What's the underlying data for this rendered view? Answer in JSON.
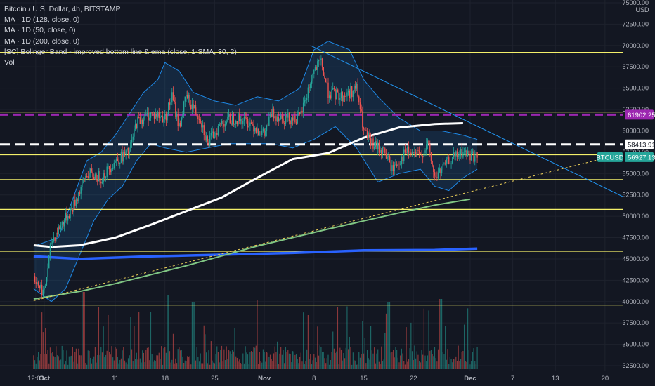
{
  "legend": {
    "title": "Bitcoin / U.S. Dollar, 4h, BITSTAMP",
    "ma128": "MA · 1D (128, close, 0)",
    "ma50": "MA · 1D (50, close, 0)",
    "ma200": "MA · 1D (200, close, 0)",
    "bb": "[SC] Bolinger Band - improved bottom line & ema (close, 1-SMA, 30, 2)",
    "vol": "Vol"
  },
  "colors": {
    "background": "#131722",
    "up": "#26a69a",
    "down": "#ef5350",
    "horizontal": "#f4f06a",
    "purple": "#9c27b0",
    "ma128": "#ffffff",
    "ma50": "#81c784",
    "ma200": "#2962ff",
    "band": "#1e88e5",
    "trend": "#2196f3",
    "dashed_trend": "#f0d25a"
  },
  "chart_data": {
    "type": "candlestick",
    "symbol": "BTCUSD",
    "currency_label": "USD",
    "ylim": [
      32500,
      75000
    ],
    "y_ticks": [
      32500,
      35000,
      37500,
      40000,
      42500,
      45000,
      47500,
      50000,
      52500,
      55000,
      57500,
      60000,
      62500,
      65000,
      67500,
      70000,
      72500,
      75000
    ],
    "y_tick_labels": [
      "32500.00",
      "35000.00",
      "37500.00",
      "40000.00",
      "42500.00",
      "45000.00",
      "47500.00",
      "50000.00",
      "52500.00",
      "55000.00",
      "57500.00",
      "60000.00",
      "62500.00",
      "65000.00",
      "67500.00",
      "70000.00",
      "72500.00",
      "75000.00"
    ],
    "x_labels": [
      "12:00",
      "Oct",
      "11",
      "18",
      "25",
      "Nov",
      "8",
      "15",
      "22",
      "Dec",
      "7",
      "13",
      "20"
    ],
    "horizontal_levels": [
      69200,
      62200,
      57200,
      54300,
      50800,
      45900,
      39600
    ],
    "purple_level": 61902.25,
    "purple_label": "61902.25",
    "white_dashed_level": 58413.91,
    "white_dashed_label": "58413.91",
    "last_price": 56927.13,
    "last_price_label": "56927.13",
    "symbol_label": "BTCUSD",
    "series_close_points": [
      {
        "d": -1.5,
        "v": 43000
      },
      {
        "d": 0,
        "v": 41000
      },
      {
        "d": 1,
        "v": 47000
      },
      {
        "d": 2,
        "v": 48500
      },
      {
        "d": 4,
        "v": 51000
      },
      {
        "d": 6,
        "v": 55000
      },
      {
        "d": 8,
        "v": 54500
      },
      {
        "d": 10,
        "v": 56500
      },
      {
        "d": 12,
        "v": 57500
      },
      {
        "d": 13,
        "v": 61000
      },
      {
        "d": 15,
        "v": 62000
      },
      {
        "d": 17,
        "v": 61500
      },
      {
        "d": 18,
        "v": 64000
      },
      {
        "d": 19,
        "v": 60500
      },
      {
        "d": 20,
        "v": 64000
      },
      {
        "d": 22,
        "v": 61500
      },
      {
        "d": 23,
        "v": 58500
      },
      {
        "d": 25,
        "v": 61000
      },
      {
        "d": 27,
        "v": 61500
      },
      {
        "d": 29,
        "v": 61000
      },
      {
        "d": 31,
        "v": 59500
      },
      {
        "d": 32,
        "v": 62000
      },
      {
        "d": 34,
        "v": 61500
      },
      {
        "d": 36,
        "v": 61500
      },
      {
        "d": 38,
        "v": 67000
      },
      {
        "d": 39,
        "v": 68000
      },
      {
        "d": 40,
        "v": 64500
      },
      {
        "d": 42,
        "v": 64000
      },
      {
        "d": 44,
        "v": 65000
      },
      {
        "d": 45,
        "v": 60000
      },
      {
        "d": 46,
        "v": 58500
      },
      {
        "d": 48,
        "v": 57500
      },
      {
        "d": 49,
        "v": 55500
      },
      {
        "d": 51,
        "v": 57500
      },
      {
        "d": 53,
        "v": 57000
      },
      {
        "d": 54,
        "v": 58500
      },
      {
        "d": 55,
        "v": 54500
      },
      {
        "d": 57,
        "v": 56500
      },
      {
        "d": 59,
        "v": 57500
      },
      {
        "d": 61,
        "v": 56900
      }
    ],
    "ma128_points": [
      {
        "d": -1.5,
        "v": 46600
      },
      {
        "d": 1,
        "v": 46400
      },
      {
        "d": 5,
        "v": 46600
      },
      {
        "d": 10,
        "v": 47500
      },
      {
        "d": 15,
        "v": 49000
      },
      {
        "d": 20,
        "v": 50600
      },
      {
        "d": 25,
        "v": 52200
      },
      {
        "d": 30,
        "v": 54500
      },
      {
        "d": 35,
        "v": 56700
      },
      {
        "d": 40,
        "v": 57400
      },
      {
        "d": 45,
        "v": 59200
      },
      {
        "d": 50,
        "v": 60400
      },
      {
        "d": 55,
        "v": 60800
      },
      {
        "d": 59,
        "v": 60900
      }
    ],
    "ma50_points": [
      {
        "d": -1.5,
        "v": 40300
      },
      {
        "d": 5,
        "v": 41200
      },
      {
        "d": 10,
        "v": 42100
      },
      {
        "d": 20,
        "v": 44200
      },
      {
        "d": 30,
        "v": 46500
      },
      {
        "d": 40,
        "v": 48500
      },
      {
        "d": 50,
        "v": 50400
      },
      {
        "d": 55,
        "v": 51300
      },
      {
        "d": 60,
        "v": 52000
      }
    ],
    "ma200_points": [
      {
        "d": -1.5,
        "v": 45300
      },
      {
        "d": 5,
        "v": 45000
      },
      {
        "d": 15,
        "v": 45300
      },
      {
        "d": 25,
        "v": 45500
      },
      {
        "d": 35,
        "v": 45700
      },
      {
        "d": 45,
        "v": 46000
      },
      {
        "d": 55,
        "v": 46050
      },
      {
        "d": 61,
        "v": 46200
      }
    ],
    "bb_upper_points": [
      {
        "d": -1.5,
        "v": 46500
      },
      {
        "d": 2,
        "v": 47500
      },
      {
        "d": 4,
        "v": 52000
      },
      {
        "d": 6,
        "v": 56500
      },
      {
        "d": 8,
        "v": 57500
      },
      {
        "d": 10,
        "v": 59500
      },
      {
        "d": 12,
        "v": 62000
      },
      {
        "d": 14,
        "v": 64500
      },
      {
        "d": 16,
        "v": 66000
      },
      {
        "d": 17,
        "v": 68000
      },
      {
        "d": 19,
        "v": 67000
      },
      {
        "d": 21,
        "v": 64500
      },
      {
        "d": 24,
        "v": 63500
      },
      {
        "d": 27,
        "v": 63000
      },
      {
        "d": 30,
        "v": 64000
      },
      {
        "d": 33,
        "v": 63500
      },
      {
        "d": 36,
        "v": 65000
      },
      {
        "d": 38,
        "v": 69500
      },
      {
        "d": 40,
        "v": 70500
      },
      {
        "d": 43,
        "v": 69500
      },
      {
        "d": 45,
        "v": 66000
      },
      {
        "d": 47,
        "v": 64000
      },
      {
        "d": 50,
        "v": 61500
      },
      {
        "d": 53,
        "v": 60000
      },
      {
        "d": 56,
        "v": 60000
      },
      {
        "d": 59,
        "v": 59500
      },
      {
        "d": 61,
        "v": 59000
      }
    ],
    "bb_lower_points": [
      {
        "d": -1.5,
        "v": 41500
      },
      {
        "d": 1,
        "v": 40000
      },
      {
        "d": 3,
        "v": 41500
      },
      {
        "d": 5,
        "v": 45500
      },
      {
        "d": 7,
        "v": 49500
      },
      {
        "d": 9,
        "v": 52000
      },
      {
        "d": 11,
        "v": 53500
      },
      {
        "d": 13,
        "v": 56500
      },
      {
        "d": 15,
        "v": 58500
      },
      {
        "d": 17,
        "v": 58000
      },
      {
        "d": 20,
        "v": 57500
      },
      {
        "d": 23,
        "v": 58000
      },
      {
        "d": 26,
        "v": 58500
      },
      {
        "d": 29,
        "v": 58500
      },
      {
        "d": 32,
        "v": 58500
      },
      {
        "d": 35,
        "v": 58000
      },
      {
        "d": 38,
        "v": 59000
      },
      {
        "d": 41,
        "v": 60500
      },
      {
        "d": 44,
        "v": 58000
      },
      {
        "d": 47,
        "v": 54000
      },
      {
        "d": 50,
        "v": 55000
      },
      {
        "d": 53,
        "v": 55500
      },
      {
        "d": 55,
        "v": 53500
      },
      {
        "d": 57,
        "v": 53000
      },
      {
        "d": 59,
        "v": 54500
      },
      {
        "d": 61,
        "v": 55500
      }
    ],
    "trend_down": {
      "from": {
        "d": 37.5,
        "v": 70000
      },
      "to": {
        "d": 82,
        "v": 52100
      }
    },
    "trend_dashed": {
      "from": {
        "d": -1.5,
        "v": 40100
      },
      "to": {
        "d": 91,
        "v": 59300
      }
    },
    "volume_max_label": "",
    "x_label_days": [
      -1.2,
      0,
      10,
      17,
      24,
      31,
      38,
      45,
      52,
      60,
      66,
      72,
      79
    ]
  }
}
